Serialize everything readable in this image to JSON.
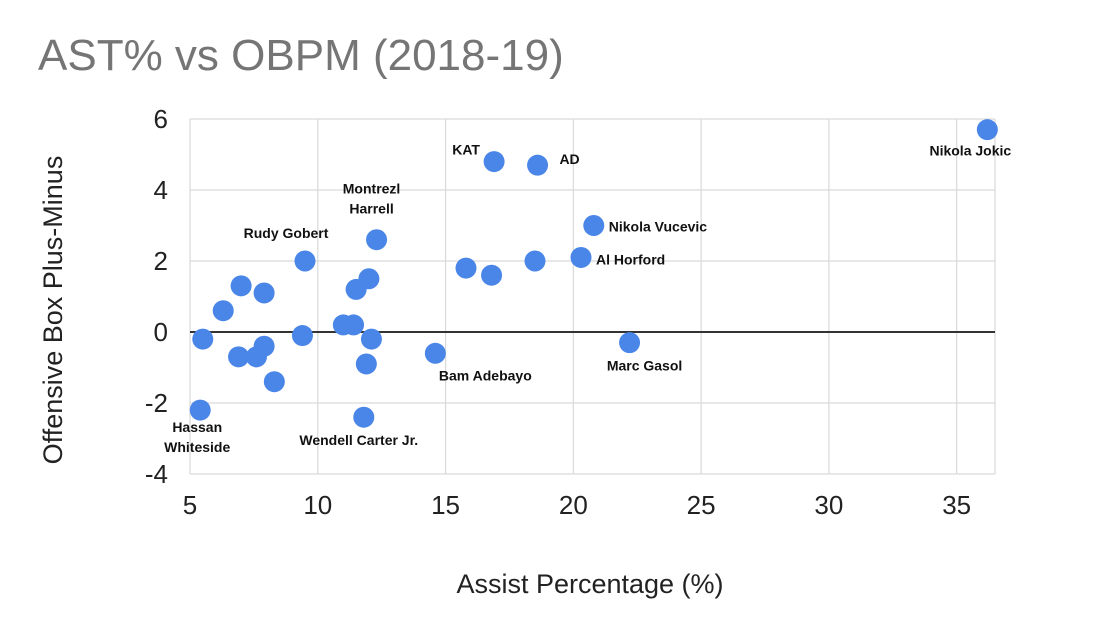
{
  "chart_data": {
    "type": "scatter",
    "title": "AST% vs OBPM (2018-19)",
    "xlabel": "Assist Percentage (%)",
    "ylabel": "Offensive Box Plus-Minus",
    "xlim": [
      5,
      36.5
    ],
    "ylim": [
      -4,
      6
    ],
    "xticks": [
      5,
      10,
      15,
      20,
      25,
      30,
      35
    ],
    "yticks": [
      -4,
      -2,
      0,
      2,
      4,
      6
    ],
    "grid": true,
    "zero_line": true,
    "point_color": "#4a86e8",
    "points": [
      {
        "x": 36.2,
        "y": 5.7,
        "label": "Nikola Jokic"
      },
      {
        "x": 16.9,
        "y": 4.8,
        "label": "KAT"
      },
      {
        "x": 18.6,
        "y": 4.7,
        "label": "AD"
      },
      {
        "x": 20.8,
        "y": 3.0,
        "label": "Nikola Vucevic"
      },
      {
        "x": 12.3,
        "y": 2.6,
        "label": "Montrezl Harrell"
      },
      {
        "x": 9.5,
        "y": 2.0,
        "label": "Rudy Gobert"
      },
      {
        "x": 20.3,
        "y": 2.1,
        "label": "Al Horford"
      },
      {
        "x": 18.5,
        "y": 2.0
      },
      {
        "x": 15.8,
        "y": 1.8
      },
      {
        "x": 16.8,
        "y": 1.6
      },
      {
        "x": 12.0,
        "y": 1.5
      },
      {
        "x": 11.5,
        "y": 1.2
      },
      {
        "x": 7.0,
        "y": 1.3
      },
      {
        "x": 7.9,
        "y": 1.1
      },
      {
        "x": 6.3,
        "y": 0.6
      },
      {
        "x": 11.0,
        "y": 0.2
      },
      {
        "x": 11.4,
        "y": 0.2
      },
      {
        "x": 9.4,
        "y": -0.1
      },
      {
        "x": 5.5,
        "y": -0.2
      },
      {
        "x": 12.1,
        "y": -0.2
      },
      {
        "x": 22.2,
        "y": -0.3,
        "label": "Marc Gasol"
      },
      {
        "x": 7.9,
        "y": -0.4
      },
      {
        "x": 6.9,
        "y": -0.7
      },
      {
        "x": 7.6,
        "y": -0.7
      },
      {
        "x": 14.6,
        "y": -0.6,
        "label": "Bam Adebayo"
      },
      {
        "x": 11.9,
        "y": -0.9
      },
      {
        "x": 8.3,
        "y": -1.4
      },
      {
        "x": 5.4,
        "y": -2.2,
        "label": "Hassan Whiteside"
      },
      {
        "x": 11.8,
        "y": -2.4,
        "label": "Wendell Carter Jr."
      }
    ]
  }
}
